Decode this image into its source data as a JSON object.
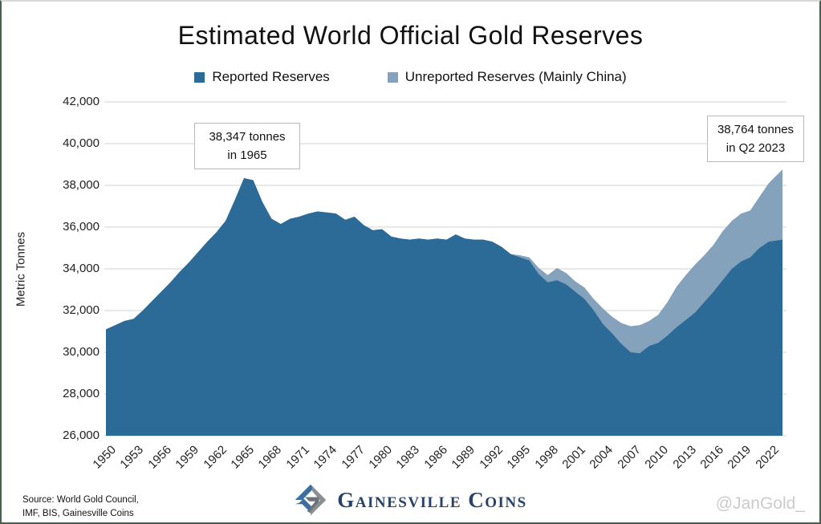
{
  "title": "Estimated World Official Gold Reserves",
  "legend": [
    {
      "label": "Reported Reserves",
      "color": "#2c6a97"
    },
    {
      "label": "Unreported Reserves (Mainly China)",
      "color": "#84a2bc"
    }
  ],
  "annotations": [
    {
      "line1": "38,347 tonnes",
      "line2": "in 1965"
    },
    {
      "line1": "38,764 tonnes",
      "line2": "in Q2 2023"
    }
  ],
  "footer": {
    "source_line1": "Source: World Gold Council,",
    "source_line2": "IMF, BIS, Gainesville Coins",
    "logo_text": "Gainesville Coins",
    "watermark": "@JanGold_"
  },
  "chart_data": {
    "type": "area",
    "stacked": true,
    "title": "Estimated World Official Gold Reserves",
    "xlabel": "",
    "ylabel": "Metric Tonnes",
    "ylim": [
      26000,
      42000
    ],
    "ytick_step": 2000,
    "grid": true,
    "legend_position": "top",
    "xticks": [
      1950,
      1953,
      1956,
      1959,
      1962,
      1965,
      1968,
      1971,
      1974,
      1977,
      1980,
      1983,
      1986,
      1989,
      1992,
      1995,
      1998,
      2001,
      2004,
      2007,
      2010,
      2013,
      2016,
      2019,
      2022
    ],
    "x": [
      1950,
      1951,
      1952,
      1953,
      1954,
      1955,
      1956,
      1957,
      1958,
      1959,
      1960,
      1961,
      1962,
      1963,
      1964,
      1965,
      1966,
      1967,
      1968,
      1969,
      1970,
      1971,
      1972,
      1973,
      1974,
      1975,
      1976,
      1977,
      1978,
      1979,
      1980,
      1981,
      1982,
      1983,
      1984,
      1985,
      1986,
      1987,
      1988,
      1989,
      1990,
      1991,
      1992,
      1993,
      1994,
      1995,
      1996,
      1997,
      1998,
      1999,
      2000,
      2001,
      2002,
      2003,
      2004,
      2005,
      2006,
      2007,
      2008,
      2009,
      2010,
      2011,
      2012,
      2013,
      2014,
      2015,
      2016,
      2017,
      2018,
      2019,
      2020,
      2021,
      2022,
      2023.5
    ],
    "annotated_points": [
      {
        "x": 1965,
        "total": 38347,
        "label": "38,347 tonnes in 1965"
      },
      {
        "x": 2023.5,
        "total": 38764,
        "label": "38,764 tonnes in Q2 2023"
      }
    ],
    "series": [
      {
        "name": "Reported Reserves",
        "color": "#2c6a97",
        "values": [
          31100,
          31300,
          31500,
          31600,
          32000,
          32450,
          32900,
          33350,
          33850,
          34300,
          34800,
          35300,
          35750,
          36300,
          37300,
          38347,
          38250,
          37200,
          36400,
          36150,
          36400,
          36500,
          36650,
          36750,
          36700,
          36650,
          36350,
          36500,
          36100,
          35850,
          35900,
          35550,
          35450,
          35400,
          35450,
          35400,
          35450,
          35400,
          35650,
          35450,
          35400,
          35400,
          35300,
          35050,
          34700,
          34550,
          34400,
          33750,
          33350,
          33450,
          33250,
          32900,
          32550,
          32000,
          31350,
          30900,
          30400,
          30000,
          29950,
          30300,
          30450,
          30800,
          31200,
          31550,
          31900,
          32400,
          32900,
          33450,
          34000,
          34350,
          34550,
          35000,
          35300,
          35400
        ]
      },
      {
        "name": "Unreported Reserves (Mainly China)",
        "color": "#84a2bc",
        "values": [
          0,
          0,
          0,
          0,
          0,
          0,
          0,
          0,
          0,
          0,
          0,
          0,
          0,
          0,
          0,
          0,
          0,
          0,
          0,
          0,
          0,
          0,
          0,
          0,
          0,
          0,
          0,
          0,
          0,
          0,
          0,
          0,
          0,
          0,
          0,
          0,
          0,
          0,
          0,
          0,
          0,
          0,
          0,
          0,
          0,
          100,
          150,
          300,
          350,
          590,
          550,
          500,
          550,
          550,
          750,
          800,
          1000,
          1250,
          1350,
          1200,
          1350,
          1600,
          1950,
          2150,
          2300,
          2250,
          2250,
          2350,
          2300,
          2300,
          2250,
          2450,
          2800,
          3364
        ]
      }
    ]
  }
}
